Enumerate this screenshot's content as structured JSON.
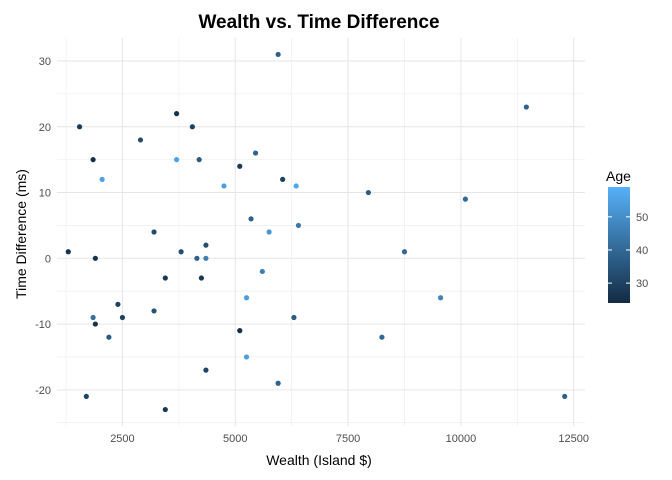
{
  "chart_data": {
    "type": "scatter",
    "title": "Wealth vs. Time Difference",
    "xlabel": "Wealth (Island $)",
    "ylabel": "Time Difference (ms)",
    "xlim": [
      1050,
      12750
    ],
    "ylim": [
      -25.5,
      33.5
    ],
    "x_ticks": [
      2500,
      5000,
      7500,
      10000,
      12500
    ],
    "x_tick_labels": [
      "2500",
      "5000",
      "7500",
      "10000",
      "12500"
    ],
    "y_ticks": [
      -20,
      -10,
      0,
      10,
      20,
      30
    ],
    "y_tick_labels": [
      "-20",
      "-10",
      "0",
      "10",
      "20",
      "30"
    ],
    "grid": true,
    "legend": {
      "title": "Age",
      "placement": "right",
      "ticks": [
        30,
        40,
        50
      ],
      "tick_labels": [
        "30",
        "40",
        "50"
      ],
      "range": [
        24,
        59
      ],
      "color_low": "#132b43",
      "color_high": "#56b1f7"
    },
    "points": [
      {
        "x": 5950,
        "y": 31,
        "age": 38
      },
      {
        "x": 11450,
        "y": 23,
        "age": 38
      },
      {
        "x": 1550,
        "y": 20,
        "age": 28
      },
      {
        "x": 3700,
        "y": 22,
        "age": 26
      },
      {
        "x": 4050,
        "y": 20,
        "age": 30
      },
      {
        "x": 2900,
        "y": 18,
        "age": 33
      },
      {
        "x": 1850,
        "y": 15,
        "age": 25
      },
      {
        "x": 3700,
        "y": 15,
        "age": 55
      },
      {
        "x": 4200,
        "y": 15,
        "age": 36
      },
      {
        "x": 5450,
        "y": 16,
        "age": 38
      },
      {
        "x": 5100,
        "y": 14,
        "age": 28
      },
      {
        "x": 2050,
        "y": 12,
        "age": 55
      },
      {
        "x": 4750,
        "y": 11,
        "age": 54
      },
      {
        "x": 6050,
        "y": 12,
        "age": 30
      },
      {
        "x": 6350,
        "y": 11,
        "age": 56
      },
      {
        "x": 7950,
        "y": 10,
        "age": 37
      },
      {
        "x": 10100,
        "y": 9,
        "age": 40
      },
      {
        "x": 5350,
        "y": 6,
        "age": 38
      },
      {
        "x": 5750,
        "y": 4,
        "age": 52
      },
      {
        "x": 6400,
        "y": 5,
        "age": 44
      },
      {
        "x": 3200,
        "y": 4,
        "age": 32
      },
      {
        "x": 4350,
        "y": 2,
        "age": 33
      },
      {
        "x": 3800,
        "y": 1,
        "age": 33
      },
      {
        "x": 8750,
        "y": 1,
        "age": 40
      },
      {
        "x": 1300,
        "y": 1,
        "age": 26
      },
      {
        "x": 1900,
        "y": 0,
        "age": 26
      },
      {
        "x": 4150,
        "y": 0,
        "age": 38
      },
      {
        "x": 4350,
        "y": 0,
        "age": 46
      },
      {
        "x": 5600,
        "y": -2,
        "age": 46
      },
      {
        "x": 3450,
        "y": -3,
        "age": 27
      },
      {
        "x": 4250,
        "y": -3,
        "age": 27
      },
      {
        "x": 2400,
        "y": -7,
        "age": 30
      },
      {
        "x": 1850,
        "y": -9,
        "age": 42
      },
      {
        "x": 2500,
        "y": -9,
        "age": 30
      },
      {
        "x": 3200,
        "y": -8,
        "age": 34
      },
      {
        "x": 5250,
        "y": -6,
        "age": 54
      },
      {
        "x": 6300,
        "y": -9,
        "age": 36
      },
      {
        "x": 9550,
        "y": -6,
        "age": 47
      },
      {
        "x": 1900,
        "y": -10,
        "age": 26
      },
      {
        "x": 2200,
        "y": -12,
        "age": 36
      },
      {
        "x": 5100,
        "y": -11,
        "age": 25
      },
      {
        "x": 8250,
        "y": -12,
        "age": 40
      },
      {
        "x": 5250,
        "y": -15,
        "age": 54
      },
      {
        "x": 4350,
        "y": -17,
        "age": 31
      },
      {
        "x": 5950,
        "y": -19,
        "age": 38
      },
      {
        "x": 1700,
        "y": -21,
        "age": 30
      },
      {
        "x": 12300,
        "y": -21,
        "age": 38
      },
      {
        "x": 3450,
        "y": -23,
        "age": 27
      }
    ]
  }
}
